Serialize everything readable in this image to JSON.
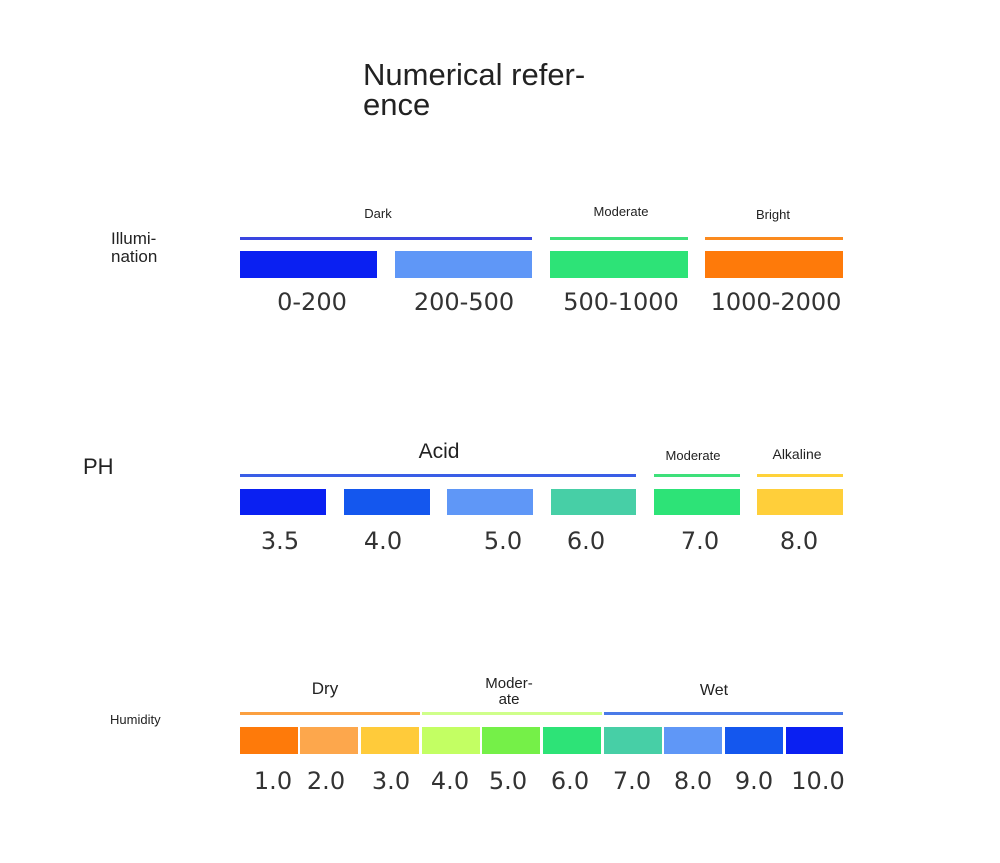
{
  "title": "Numerical refer-\nence",
  "illumination": {
    "label": "Illumi-\nnation",
    "groups": [
      {
        "label": "Dark",
        "color": "#3a46e0"
      },
      {
        "label": "Moderate",
        "color": "#3ee07a"
      },
      {
        "label": "Bright",
        "color": "#fb8a1e"
      }
    ],
    "items": [
      {
        "value": "0-200",
        "color": "#0a20f2"
      },
      {
        "value": "200-500",
        "color": "#5f97f7"
      },
      {
        "value": "500-1000",
        "color": "#2de377"
      },
      {
        "value": "1000-2000",
        "color": "#fe7a0a"
      }
    ]
  },
  "ph": {
    "label": "PH",
    "groups": [
      {
        "label": "Acid",
        "color": "#3a5ee6"
      },
      {
        "label": "Moderate",
        "color": "#3ee07a"
      },
      {
        "label": "Alkaline",
        "color": "#ffd23a"
      }
    ],
    "items": [
      {
        "value": "3.5",
        "color": "#0a20f2"
      },
      {
        "value": "4.0",
        "color": "#1457ee"
      },
      {
        "value": "5.0",
        "color": "#5f97f7"
      },
      {
        "value": "6.0",
        "color": "#47cfa6"
      },
      {
        "value": "7.0",
        "color": "#2de377"
      },
      {
        "value": "8.0",
        "color": "#ffcf3a"
      }
    ]
  },
  "humidity": {
    "label": "Humidity",
    "groups": [
      {
        "label": "Dry",
        "color": "#fba040"
      },
      {
        "label": "Moder-\nate",
        "color": "#cfff8a"
      },
      {
        "label": "Wet",
        "color": "#4a7ae8"
      }
    ],
    "items": [
      {
        "value": "1.0",
        "color": "#fe7a0a"
      },
      {
        "value": "2.0",
        "color": "#fda74c"
      },
      {
        "value": "3.0",
        "color": "#ffcb3a"
      },
      {
        "value": "4.0",
        "color": "#c3ff63"
      },
      {
        "value": "5.0",
        "color": "#75f048"
      },
      {
        "value": "6.0",
        "color": "#2de377"
      },
      {
        "value": "7.0",
        "color": "#47cfa6"
      },
      {
        "value": "8.0",
        "color": "#5f97f7"
      },
      {
        "value": "9.0",
        "color": "#1457ee"
      },
      {
        "value": "10.0",
        "color": "#0a20f2"
      }
    ]
  }
}
